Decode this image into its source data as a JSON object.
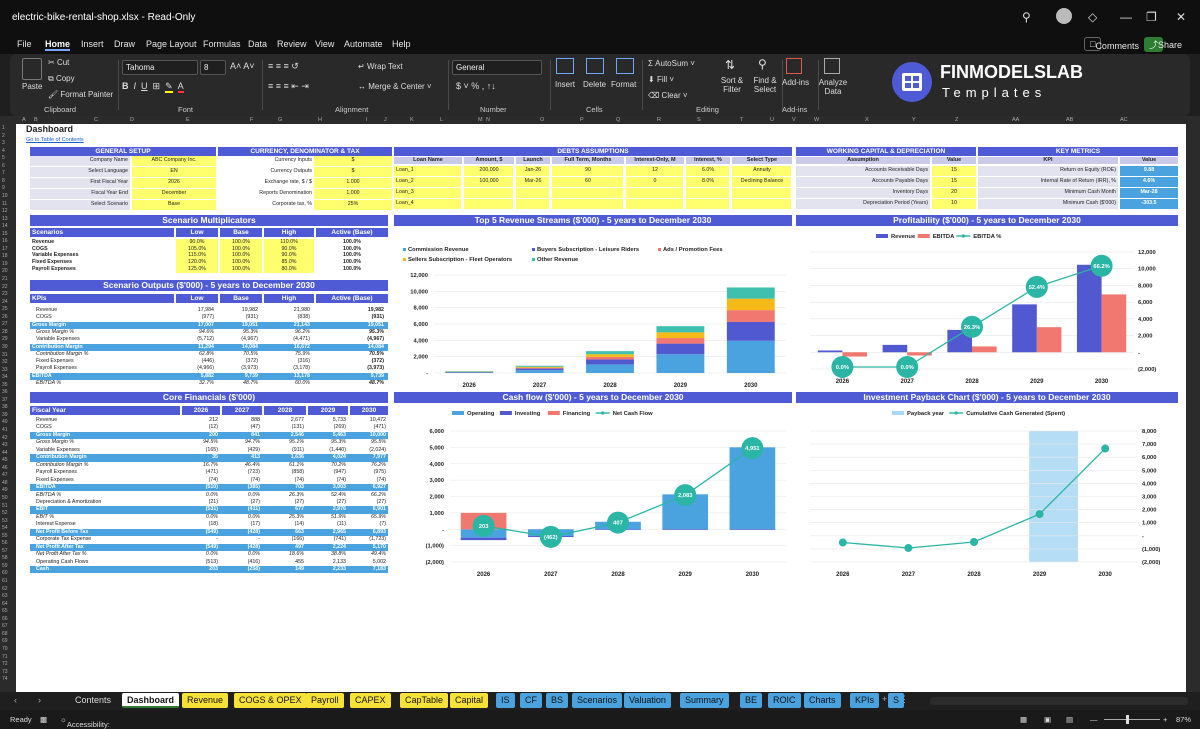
{
  "window": {
    "title": "electric-bike-rental-shop.xlsx  -  Read-Only"
  },
  "menu": [
    "File",
    "Home",
    "Insert",
    "Draw",
    "Page Layout",
    "Formulas",
    "Data",
    "Review",
    "View",
    "Automate",
    "Help"
  ],
  "top_buttons": {
    "comments": "Comments",
    "share": "Share"
  },
  "ribbon": {
    "paste": "Paste",
    "cut": "Cut",
    "copy": "Copy",
    "format_painter": "Format Painter",
    "clipboard": "Clipboard",
    "font_name": "Tahoma",
    "font_size": "8",
    "font": "Font",
    "wrap_text": "Wrap Text",
    "merge_center": "Merge & Center",
    "alignment": "Alignment",
    "number_format": "General",
    "number": "Number",
    "insert": "Insert",
    "delete": "Delete",
    "format": "Format",
    "cells": "Cells",
    "autosum": "AutoSum",
    "fill": "Fill",
    "clear": "Clear",
    "sort_filter": "Sort & Filter",
    "find_select": "Find & Select",
    "editing": "Editing",
    "addins": "Add-ins",
    "analyze": "Analyze Data",
    "brand": "FINMODELSLAB",
    "brand_sub": "Templates"
  },
  "columns": [
    "A",
    "B",
    "C",
    "D",
    "E",
    "F",
    "G",
    "H",
    "I",
    "J",
    "K",
    "L",
    "M",
    "N",
    "O",
    "P",
    "Q",
    "R",
    "S",
    "T",
    "U",
    "V",
    "W",
    "X",
    "Y",
    "Z",
    "AA",
    "AB",
    "AC"
  ],
  "sheet": {
    "title": "Dashboard",
    "toc": "Go to Table of Contents",
    "general": {
      "hdr": "GENERAL SETUP",
      "rows": [
        [
          "Company Name",
          "ABC Company Inc."
        ],
        [
          "Select Language",
          "EN"
        ],
        [
          "First Fiscal Year",
          "2026"
        ],
        [
          "Fiscal Year End",
          "December"
        ],
        [
          "Select Scenario",
          "Base"
        ]
      ]
    },
    "currency": {
      "hdr": "CURRENCY, DENOMINATOR & TAX",
      "rows": [
        [
          "Currency Inputs",
          "$"
        ],
        [
          "Currency Outputs",
          "$"
        ],
        [
          "Exchange rate, $ / $",
          "1.000"
        ],
        [
          "Reports Denomination",
          "1,000"
        ],
        [
          "Corporate tax, %",
          "25%"
        ]
      ]
    },
    "debts": {
      "hdr": "DEBTS ASSUMPTIONS",
      "cols": [
        "Loan Name",
        "Amount, $",
        "Launch",
        "Full Term, Months",
        "Interest-Only, M",
        "Interest, %",
        "Select Type"
      ],
      "rows": [
        [
          "Loan_1",
          "200,000",
          "Jan-26",
          "90",
          "12",
          "6.0%",
          "Annuity"
        ],
        [
          "Loan_2",
          "100,000",
          "Mar-26",
          "60",
          "0",
          "8.0%",
          "Declining Balance"
        ],
        [
          "Loan_3",
          "",
          "",
          "",
          "",
          "",
          ""
        ],
        [
          "Loan_4",
          "",
          "",
          "",
          "",
          "",
          ""
        ]
      ]
    },
    "wc": {
      "hdr": "WORKING CAPITAL & DEPRECIATION",
      "cols": [
        "Assumption",
        "Value"
      ],
      "rows": [
        [
          "Accounts Receivable Days",
          "15"
        ],
        [
          "Accounts Payable Days",
          "15"
        ],
        [
          "Inventory Days",
          "20"
        ],
        [
          "Depreciation Period (Years)",
          "10"
        ]
      ]
    },
    "metrics": {
      "hdr": "KEY METRICS",
      "cols": [
        "KPI",
        "Value"
      ],
      "rows": [
        [
          "Return on Equity (ROE)",
          "9.88"
        ],
        [
          "Internal Rate of Return (IRR), %",
          "4.6%"
        ],
        [
          "Minimum Cash Month",
          "Mar-28"
        ],
        [
          "Minimum Cash ($'000)",
          "-303.5"
        ]
      ]
    },
    "multip": {
      "hdr": "Scenario Multiplicators",
      "cols": [
        "Scenarios",
        "Low",
        "Base",
        "High",
        "Active (Base)"
      ],
      "rows": [
        [
          "Revenue",
          "90.0%",
          "100.0%",
          "110.0%",
          "100.0%"
        ],
        [
          "COGS",
          "105.0%",
          "100.0%",
          "90.0%",
          "100.0%"
        ],
        [
          "Variable Expenses",
          "115.0%",
          "100.0%",
          "90.0%",
          "100.0%"
        ],
        [
          "Fixed Expenses",
          "120.0%",
          "100.0%",
          "85.0%",
          "100.0%"
        ],
        [
          "Payroll Expenses",
          "125.0%",
          "100.0%",
          "80.0%",
          "100.0%"
        ]
      ]
    },
    "outputs": {
      "hdr": "Scenario Outputs ($'000) - 5 years to December 2030",
      "cols": [
        "KPIs",
        "Low",
        "Base",
        "High",
        "Active (Base)"
      ],
      "rows": [
        [
          "Revenue",
          "17,984",
          "19,982",
          "21,980",
          "19,982"
        ],
        [
          "COGS",
          "(977)",
          "(931)",
          "(838)",
          "(931)"
        ],
        [
          "Gross Margin",
          "17,007",
          "19,051",
          "21,143",
          "19,051"
        ],
        [
          "Gross Margin %",
          "94.6%",
          "95.3%",
          "96.2%",
          "95.3%"
        ],
        [
          "Variable Expenses",
          "(5,712)",
          "(4,967)",
          "(4,471)",
          "(4,967)"
        ],
        [
          "Contribution Margin",
          "11,294",
          "14,084",
          "16,672",
          "14,084"
        ],
        [
          "Contribution Margin %",
          "62.8%",
          "70.5%",
          "75.9%",
          "70.5%"
        ],
        [
          "Fixed Expenses",
          "(446)",
          "(372)",
          "(316)",
          "(372)"
        ],
        [
          "Payroll Expenses",
          "(4,966)",
          "(3,973)",
          "(3,178)",
          "(3,973)"
        ],
        [
          "EBITDA",
          "5,882",
          "9,739",
          "13,178",
          "9,739"
        ],
        [
          "EBITDA %",
          "32.7%",
          "48.7%",
          "60.0%",
          "48.7%"
        ]
      ]
    },
    "core": {
      "hdr": "Core Financials ($'000)",
      "cols": [
        "Fiscal Year",
        "2026",
        "2027",
        "2028",
        "2029",
        "2030"
      ],
      "rows": [
        [
          "Revenue",
          "212",
          "888",
          "2,677",
          "5,733",
          "10,472"
        ],
        [
          "COGS",
          "(12)",
          "(47)",
          "(131)",
          "(269)",
          "(471)"
        ],
        [
          "Gross Margin",
          "200",
          "841",
          "2,546",
          "5,463",
          "10,000"
        ],
        [
          "Gross Margin %",
          "94.5%",
          "94.7%",
          "95.1%",
          "95.3%",
          "95.5%"
        ],
        [
          "Variable Expenses",
          "(165)",
          "(429)",
          "(911)",
          "(1,440)",
          "(2,024)"
        ],
        [
          "Contribution Margin",
          "35",
          "413",
          "1,636",
          "4,024",
          "7,977"
        ],
        [
          "Contribution Margin %",
          "16.7%",
          "46.4%",
          "61.1%",
          "70.2%",
          "76.2%"
        ],
        [
          "Payroll Expenses",
          "(471)",
          "(723)",
          "(858)",
          "(947)",
          "(975)"
        ],
        [
          "Fixed Expenses",
          "(74)",
          "(74)",
          "(74)",
          "(74)",
          "(74)"
        ],
        [
          "EBITDA",
          "(510)",
          "(385)",
          "703",
          "3,003",
          "6,927"
        ],
        [
          "EBITDA %",
          "0.0%",
          "0.0%",
          "26.3%",
          "52.4%",
          "66.2%"
        ],
        [
          "Depreciation & Amortization",
          "(21)",
          "(27)",
          "(27)",
          "(27)",
          "(27)"
        ],
        [
          "EBIT",
          "(531)",
          "(411)",
          "677",
          "2,976",
          "6,901"
        ],
        [
          "EBIT %",
          "0.0%",
          "0.0%",
          "25.3%",
          "51.9%",
          "65.9%"
        ],
        [
          "Interest Expense",
          "(18)",
          "(17)",
          "(14)",
          "(11)",
          "(7)"
        ],
        [
          "Net Profit Before Tax",
          "(549)",
          "(428)",
          "663",
          "2,965",
          "6,893"
        ],
        [
          "Corporate Tax Expense",
          "-",
          "-",
          "(166)",
          "(741)",
          "(1,723)"
        ],
        [
          "Net Profit After Tax",
          "(549)",
          "(428)",
          "497",
          "2,224",
          "5,170"
        ],
        [
          "Net Profit After Tax %",
          "0.0%",
          "0.0%",
          "18.6%",
          "38.8%",
          "49.4%"
        ],
        [
          "Operating Cash Flows",
          "(513)",
          "(416)",
          "455",
          "2,133",
          "5,002"
        ],
        [
          "Cash",
          "203",
          "(258)",
          "149",
          "2,233",
          "7,183"
        ]
      ]
    }
  },
  "chart_data": [
    {
      "type": "bar",
      "title": "Top 5 Revenue Streams ($'000) - 5 years to December 2030",
      "categories": [
        "2026",
        "2027",
        "2028",
        "2029",
        "2030"
      ],
      "ylim": [
        0,
        12000
      ],
      "yticks": [
        "12,000",
        "10,000",
        "8,000",
        "6,000",
        "4,000",
        "2,000",
        "-"
      ],
      "series": [
        {
          "name": "Commission Revenue",
          "color": "#4aa3df",
          "values": [
            80,
            340,
            1050,
            2300,
            3950
          ]
        },
        {
          "name": "Buyers Subscription - Leisure Riders",
          "color": "#5059cf",
          "values": [
            50,
            200,
            600,
            1300,
            2300
          ]
        },
        {
          "name": "Ads / Promotion Fees",
          "color": "#f07870",
          "values": [
            30,
            110,
            320,
            680,
            1450
          ]
        },
        {
          "name": "Sellers Subscription - Fleet Operators",
          "color": "#f5ba18",
          "values": [
            25,
            110,
            330,
            700,
            1400
          ]
        },
        {
          "name": "Other Revenue",
          "color": "#3fbfae",
          "values": [
            27,
            128,
            377,
            753,
            1372
          ]
        }
      ]
    },
    {
      "type": "bar+line",
      "title": "Profitability ($'000) - 5 years to December 2030",
      "categories": [
        "2026",
        "2027",
        "2028",
        "2029",
        "2030"
      ],
      "ylim": [
        -2000,
        12000
      ],
      "yticks": [
        "12,000",
        "10,000",
        "8,000",
        "6,000",
        "4,000",
        "2,000",
        "-",
        "(2,000)"
      ],
      "series": [
        {
          "name": "Revenue",
          "color": "#5059cf",
          "values": [
            212,
            888,
            2677,
            5733,
            10472
          ]
        },
        {
          "name": "EBITDA",
          "color": "#f07870",
          "values": [
            -510,
            -385,
            703,
            3003,
            6927
          ]
        },
        {
          "name": "EBITDA %",
          "color": "#2ab5a5",
          "values": [
            0.0,
            0.0,
            26.3,
            52.4,
            66.2
          ],
          "labels": [
            "0.0%",
            "0.0%",
            "26.3%",
            "52.4%",
            "66.2%"
          ]
        }
      ]
    },
    {
      "type": "bar+line",
      "title": "Cash flow ($'000) - 5 years to December 2030",
      "categories": [
        "2026",
        "2027",
        "2028",
        "2029",
        "2030"
      ],
      "ylim": [
        -2000,
        6000
      ],
      "yticks": [
        "6,000",
        "5,000",
        "4,000",
        "3,000",
        "2,000",
        "1,000",
        "-",
        "(1,000)",
        "(2,000)"
      ],
      "series": [
        {
          "name": "Operating",
          "color": "#4aa3df",
          "values": [
            -513,
            -416,
            455,
            2133,
            5002
          ]
        },
        {
          "name": "Investing",
          "color": "#5059cf",
          "values": [
            -150,
            -60,
            -40,
            -40,
            -40
          ]
        },
        {
          "name": "Financing",
          "color": "#f07870",
          "values": [
            1000,
            0,
            0,
            0,
            0
          ]
        },
        {
          "name": "Net Cash Flow",
          "color": "#2ab5a5",
          "values": [
            203,
            -462,
            407,
            2083,
            4951
          ],
          "labels": [
            "203",
            "(462)",
            "407",
            "2,083",
            "4,951"
          ]
        }
      ]
    },
    {
      "type": "bar+line",
      "title": "Investment Payback Chart ($'000) - 5 years to December 2030",
      "categories": [
        "2026",
        "2027",
        "2028",
        "2029",
        "2030"
      ],
      "ylim": [
        -2000,
        8000
      ],
      "yticks": [
        "8,000",
        "7,000",
        "6,000",
        "5,000",
        "4,000",
        "3,000",
        "2,000",
        "1,000",
        "-",
        "(1,000)",
        "(2,000)"
      ],
      "series": [
        {
          "name": "Payback year",
          "color": "#a8d8f5",
          "values": [
            0,
            0,
            0,
            1,
            0
          ]
        },
        {
          "name": "Cumulative Cash Generated (Spent)",
          "color": "#2ab5a5",
          "values": [
            -513,
            -929,
            -474,
            1659,
            6661
          ]
        }
      ]
    }
  ],
  "tabs": [
    {
      "label": "Contents",
      "bg": "#1f1f1f",
      "fg": "#ddd"
    },
    {
      "label": "Dashboard",
      "bg": "#ffffff",
      "fg": "#111"
    },
    {
      "label": "Revenue",
      "bg": "#f7e238",
      "fg": "#111"
    },
    {
      "label": "COGS & OPEX",
      "bg": "#f7e238",
      "fg": "#111"
    },
    {
      "label": "Payroll",
      "bg": "#f7e238",
      "fg": "#111"
    },
    {
      "label": "CAPEX",
      "bg": "#f7e238",
      "fg": "#111"
    },
    {
      "label": "CapTable",
      "bg": "#f7e238",
      "fg": "#111"
    },
    {
      "label": "Capital",
      "bg": "#f7e238",
      "fg": "#111"
    },
    {
      "label": "IS",
      "bg": "#4aa3df",
      "fg": "#111"
    },
    {
      "label": "CF",
      "bg": "#4aa3df",
      "fg": "#111"
    },
    {
      "label": "BS",
      "bg": "#4aa3df",
      "fg": "#111"
    },
    {
      "label": "Scenarios",
      "bg": "#4aa3df",
      "fg": "#111"
    },
    {
      "label": "Valuation",
      "bg": "#4aa3df",
      "fg": "#111"
    },
    {
      "label": "Summary",
      "bg": "#4aa3df",
      "fg": "#111"
    },
    {
      "label": "BE",
      "bg": "#4aa3df",
      "fg": "#111"
    },
    {
      "label": "ROIC",
      "bg": "#4aa3df",
      "fg": "#111"
    },
    {
      "label": "Charts",
      "bg": "#4aa3df",
      "fg": "#111"
    },
    {
      "label": "KPIs",
      "bg": "#4aa3df",
      "fg": "#111"
    },
    {
      "label": "S",
      "bg": "#4aa3df",
      "fg": "#111"
    }
  ],
  "status": {
    "ready": "Ready",
    "accessibility": "Accessibility: Investigate",
    "zoom": "87%"
  },
  "icons": [
    "search-icon",
    "avatar",
    "diamond-icon",
    "minimize-icon",
    "restore-icon",
    "close-icon"
  ]
}
